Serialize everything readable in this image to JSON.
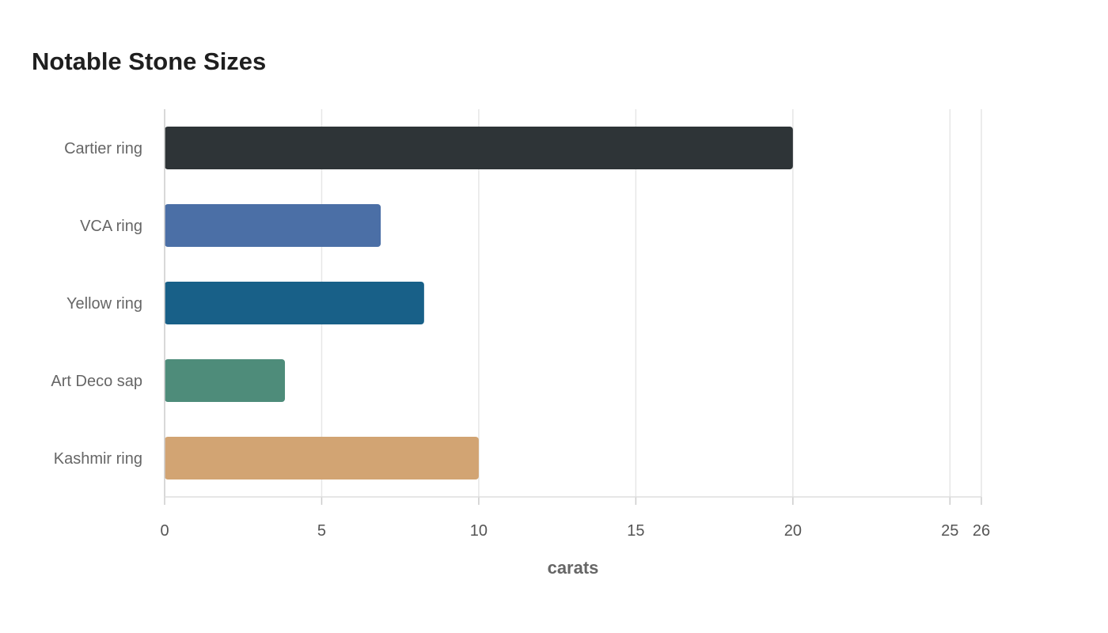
{
  "chart_data": {
    "type": "bar",
    "orientation": "horizontal",
    "title": "Notable Stone Sizes",
    "xlabel": "carats",
    "ylabel": "",
    "categories": [
      "Cartier ring",
      "VCA ring",
      "Yellow ring",
      "Art Deco sap",
      "Kashmir ring"
    ],
    "values": [
      20.0,
      6.88,
      8.26,
      3.83,
      10.0
    ],
    "colors": [
      "#2e3437",
      "#4b6fa6",
      "#186088",
      "#4e8c7a",
      "#d2a473"
    ],
    "xlim": [
      0,
      26
    ],
    "xticks": [
      0,
      5,
      10,
      15,
      20,
      25,
      26
    ],
    "grid": true,
    "legend": "none"
  }
}
